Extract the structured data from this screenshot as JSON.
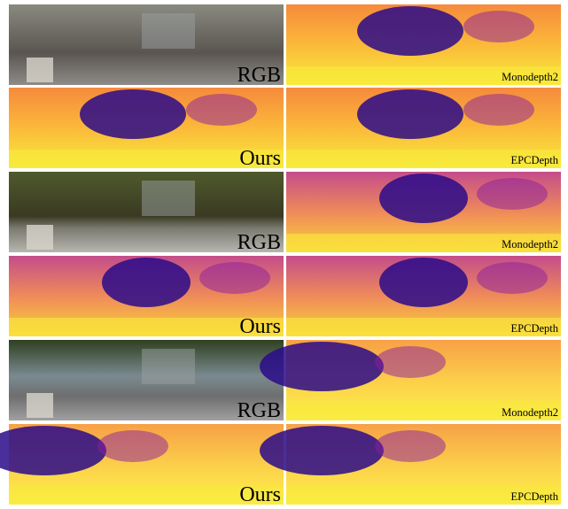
{
  "panels": [
    {
      "label": "RGB"
    },
    {
      "label": "Monodepth2"
    },
    {
      "label": "Ours"
    },
    {
      "label": "EPCDepth"
    },
    {
      "label": "RGB"
    },
    {
      "label": "Monodepth2"
    },
    {
      "label": "Ours"
    },
    {
      "label": "EPCDepth"
    },
    {
      "label": "RGB"
    },
    {
      "label": "Monodepth2"
    },
    {
      "label": "Ours"
    },
    {
      "label": "EPCDepth"
    }
  ]
}
